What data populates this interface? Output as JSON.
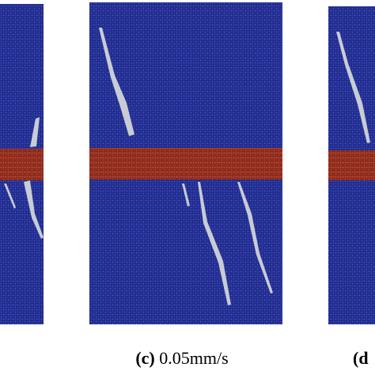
{
  "panels": [
    {
      "label": "(c)",
      "caption": "0.05mm/s"
    },
    {
      "label": "(d"
    }
  ]
}
